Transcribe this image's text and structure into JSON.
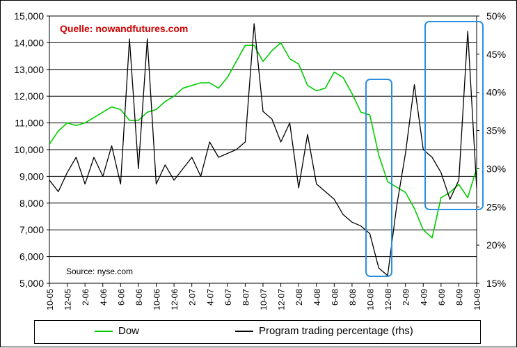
{
  "chart_data": {
    "type": "line",
    "annotations": {
      "quelle": "Quelle: nowandfutures.com",
      "source": "Source: nyse.com",
      "highlight_boxes": [
        "10-08 to 12-08",
        "4-09 to 8-09"
      ]
    },
    "x_tick_labels": [
      "10-05",
      "12-05",
      "2-06",
      "4-06",
      "6-06",
      "8-06",
      "10-06",
      "12-06",
      "2-07",
      "4-07",
      "6-07",
      "8-07",
      "10-07",
      "12-07",
      "2-08",
      "4-08",
      "6-08",
      "8-08",
      "10-08",
      "12-08",
      "2-09",
      "4-09",
      "6-09",
      "8-09",
      "10-09"
    ],
    "y_left": {
      "tick_labels": [
        "5,000",
        "6,000",
        "7,000",
        "8,000",
        "9,000",
        "10,000",
        "11,000",
        "12,000",
        "13,000",
        "14,000",
        "15,000"
      ],
      "range": [
        5000,
        15000
      ]
    },
    "y_right": {
      "tick_labels": [
        "15%",
        "20%",
        "25%",
        "30%",
        "35%",
        "40%",
        "45%",
        "50%"
      ],
      "range": [
        15,
        50
      ]
    },
    "grid": "horizontal",
    "legend_position": "bottom",
    "series": [
      {
        "name": "Dow",
        "axis": "left",
        "color": "#00cc00",
        "points": [
          [
            0,
            10200
          ],
          [
            1,
            10700
          ],
          [
            2,
            11000
          ],
          [
            3,
            10900
          ],
          [
            4,
            11000
          ],
          [
            5,
            11200
          ],
          [
            6,
            11400
          ],
          [
            7,
            11600
          ],
          [
            8,
            11500
          ],
          [
            9,
            11100
          ],
          [
            10,
            11100
          ],
          [
            11,
            11400
          ],
          [
            12,
            11500
          ],
          [
            13,
            11800
          ],
          [
            14,
            12000
          ],
          [
            15,
            12300
          ],
          [
            16,
            12400
          ],
          [
            17,
            12500
          ],
          [
            18,
            12500
          ],
          [
            19,
            12300
          ],
          [
            20,
            12700
          ],
          [
            21,
            13300
          ],
          [
            22,
            13900
          ],
          [
            23,
            13900
          ],
          [
            24,
            13300
          ],
          [
            25,
            13700
          ],
          [
            26,
            14000
          ],
          [
            27,
            13400
          ],
          [
            28,
            13200
          ],
          [
            29,
            12400
          ],
          [
            30,
            12200
          ],
          [
            31,
            12300
          ],
          [
            32,
            12900
          ],
          [
            33,
            12700
          ],
          [
            34,
            12100
          ],
          [
            35,
            11400
          ],
          [
            36,
            11300
          ],
          [
            37,
            9800
          ],
          [
            38,
            8800
          ],
          [
            39,
            8600
          ],
          [
            40,
            8400
          ],
          [
            41,
            7800
          ],
          [
            42,
            7000
          ],
          [
            43,
            6700
          ],
          [
            44,
            8200
          ],
          [
            45,
            8400
          ],
          [
            46,
            8700
          ],
          [
            47,
            8200
          ],
          [
            48,
            9300
          ]
        ]
      },
      {
        "name": "Program trading percentage (rhs)",
        "axis": "right",
        "color": "#000000",
        "points": [
          [
            0,
            28.5
          ],
          [
            1,
            27.0
          ],
          [
            2,
            29.5
          ],
          [
            3,
            31.5
          ],
          [
            4,
            28.0
          ],
          [
            5,
            31.5
          ],
          [
            6,
            29.0
          ],
          [
            7,
            33.0
          ],
          [
            8,
            28.0
          ],
          [
            9,
            47.0
          ],
          [
            10,
            30.0
          ],
          [
            11,
            47.0
          ],
          [
            12,
            28.0
          ],
          [
            13,
            30.5
          ],
          [
            14,
            28.5
          ],
          [
            15,
            30.0
          ],
          [
            16,
            31.5
          ],
          [
            17,
            29.0
          ],
          [
            18,
            33.5
          ],
          [
            19,
            31.5
          ],
          [
            20,
            32.0
          ],
          [
            21,
            32.5
          ],
          [
            22,
            33.5
          ],
          [
            23,
            49.0
          ],
          [
            24,
            37.5
          ],
          [
            25,
            36.5
          ],
          [
            26,
            33.5
          ],
          [
            27,
            36.0
          ],
          [
            28,
            27.5
          ],
          [
            29,
            34.5
          ],
          [
            30,
            28.0
          ],
          [
            31,
            27.0
          ],
          [
            32,
            26.0
          ],
          [
            33,
            24.0
          ],
          [
            34,
            23.0
          ],
          [
            35,
            22.5
          ],
          [
            36,
            21.5
          ],
          [
            37,
            17.0
          ],
          [
            38,
            16.0
          ],
          [
            39,
            25.0
          ],
          [
            40,
            32.0
          ],
          [
            41,
            41.0
          ],
          [
            42,
            32.5
          ],
          [
            43,
            31.5
          ],
          [
            44,
            29.5
          ],
          [
            45,
            26.0
          ],
          [
            46,
            28.5
          ],
          [
            47,
            48.0
          ],
          [
            48,
            27.5
          ]
        ]
      }
    ]
  }
}
